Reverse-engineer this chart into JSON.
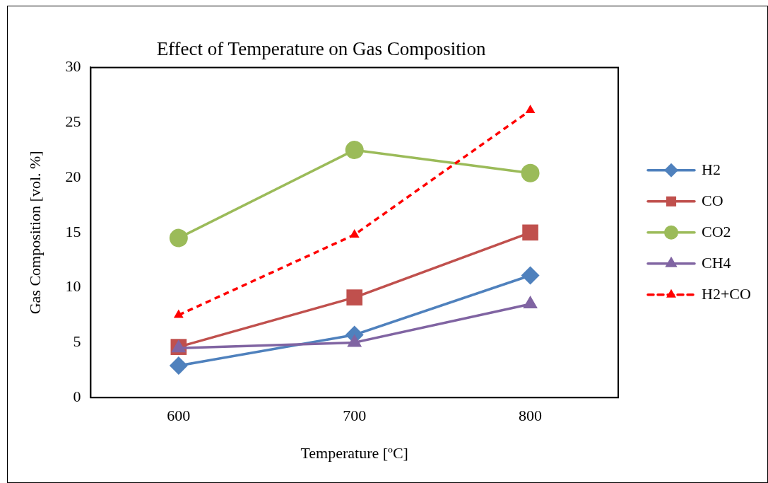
{
  "chart_data": {
    "type": "line",
    "title": "Effect of Temperature on Gas Composition",
    "xlabel": "Temperature [ºC]",
    "ylabel": "Gas Composition [vol. %]",
    "categories": [
      "600",
      "700",
      "800"
    ],
    "series": [
      {
        "name": "H2",
        "color": "#4f81bd",
        "marker": "diamond",
        "line_style": "solid",
        "values": [
          2.9,
          5.7,
          11.1
        ]
      },
      {
        "name": "CO",
        "color": "#c0504d",
        "marker": "square",
        "line_style": "solid",
        "values": [
          4.6,
          9.1,
          15.0
        ]
      },
      {
        "name": "CO2",
        "color": "#9bbb59",
        "marker": "circle",
        "line_style": "solid",
        "values": [
          14.5,
          22.5,
          20.4
        ]
      },
      {
        "name": "CH4",
        "color": "#8064a2",
        "marker": "triangle",
        "line_style": "solid",
        "values": [
          4.5,
          5.0,
          8.5
        ]
      },
      {
        "name": "H2+CO",
        "color": "#ff0000",
        "marker": "triangle",
        "line_style": "dashed",
        "values": [
          7.5,
          14.8,
          26.1
        ]
      }
    ],
    "ylim": [
      0,
      30
    ],
    "yticks": [
      0,
      5,
      10,
      15,
      20,
      25,
      30
    ],
    "grid": false,
    "legend": "right"
  }
}
